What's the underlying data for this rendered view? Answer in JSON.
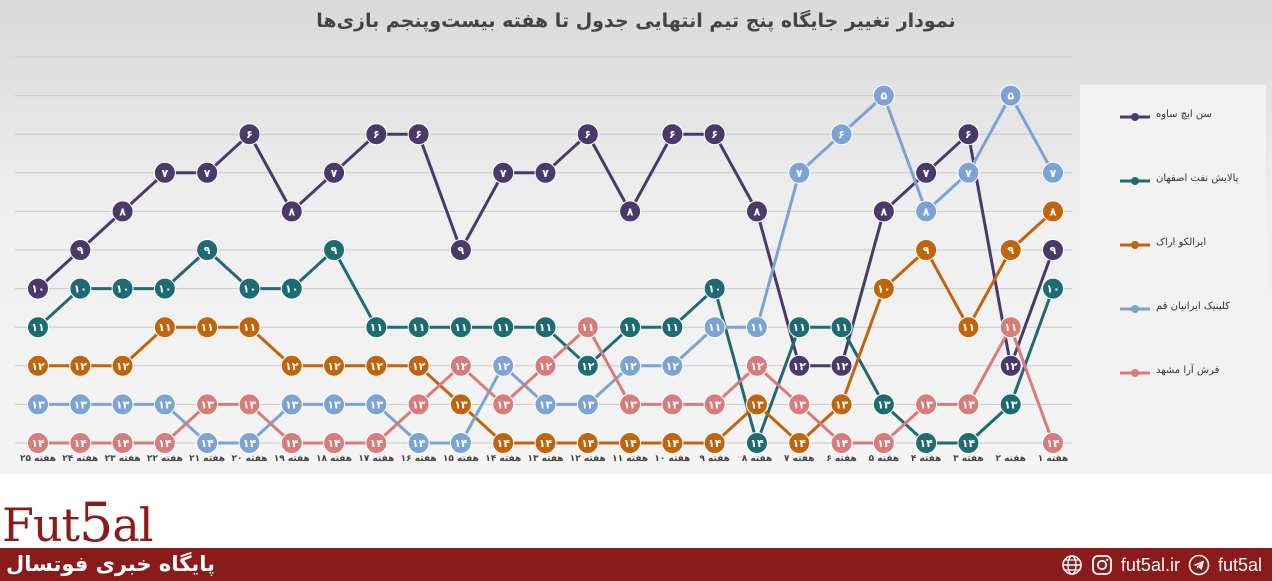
{
  "chart_data": {
    "type": "line",
    "title": "نمودار تغییر جایگاه پنج تیم انتهایی جدول تا هفته بیست‌وپنجم بازی‌ها",
    "categories": [
      "هفته ۲۵",
      "هفته ۲۴",
      "هفته ۲۳",
      "هفته ۲۲",
      "هفته ۲۱",
      "هفته ۲۰",
      "هفته ۱۹",
      "هفته ۱۸",
      "هفته ۱۷",
      "هفته ۱۶",
      "هفته ۱۵",
      "هفته ۱۴",
      "هفته ۱۳",
      "هفته ۱۲",
      "هفته ۱۱",
      "هفته ۱۰",
      "هفته ۹",
      "هفته ۸",
      "هفته ۷",
      "هفته ۶",
      "هفته ۵",
      "هفته ۴",
      "هفته ۳",
      "هفته ۲",
      "هفته ۱"
    ],
    "y_reversed": true,
    "ylim": [
      4,
      14
    ],
    "grid": true,
    "legend_position": "right",
    "series": [
      {
        "name": "سن ایچ ساوه",
        "color": "#4a3a6b",
        "values": [
          10,
          9,
          8,
          7,
          7,
          6,
          8,
          7,
          6,
          6,
          9,
          7,
          7,
          6,
          8,
          6,
          6,
          8,
          12,
          12,
          8,
          7,
          6,
          12,
          9
        ]
      },
      {
        "name": "پالایش نفت اصفهان",
        "color": "#1f6b73",
        "values": [
          11,
          10,
          10,
          10,
          9,
          10,
          10,
          9,
          11,
          11,
          11,
          11,
          11,
          12,
          11,
          11,
          10,
          14,
          11,
          11,
          13,
          14,
          14,
          13,
          10
        ]
      },
      {
        "name": "ایرالکو اراک",
        "color": "#c0650e",
        "values": [
          12,
          12,
          12,
          11,
          11,
          11,
          12,
          12,
          12,
          12,
          13,
          14,
          14,
          14,
          14,
          14,
          14,
          13,
          14,
          13,
          10,
          9,
          11,
          9,
          8
        ]
      },
      {
        "name": "کلینیک ایرانیان قم",
        "color": "#7ba3d4",
        "values": [
          13,
          13,
          13,
          13,
          14,
          14,
          13,
          13,
          13,
          14,
          14,
          12,
          13,
          13,
          12,
          12,
          11,
          11,
          7,
          6,
          5,
          8,
          7,
          5,
          7
        ]
      },
      {
        "name": "فرش آرا مشهد",
        "color": "#d87b7b",
        "values": [
          14,
          14,
          14,
          14,
          13,
          13,
          14,
          14,
          14,
          13,
          12,
          13,
          12,
          11,
          13,
          13,
          13,
          12,
          13,
          14,
          14,
          13,
          13,
          11,
          14
        ]
      }
    ]
  },
  "footer": {
    "logo_a": "Fut",
    "logo_b": "5",
    "logo_c": "al",
    "tagline": "پایگاه خبری فوتسال",
    "site": "fut5al.ir",
    "handle": "fut5al",
    "icons": [
      "globe-icon",
      "instagram-icon",
      "telegram-icon"
    ]
  }
}
